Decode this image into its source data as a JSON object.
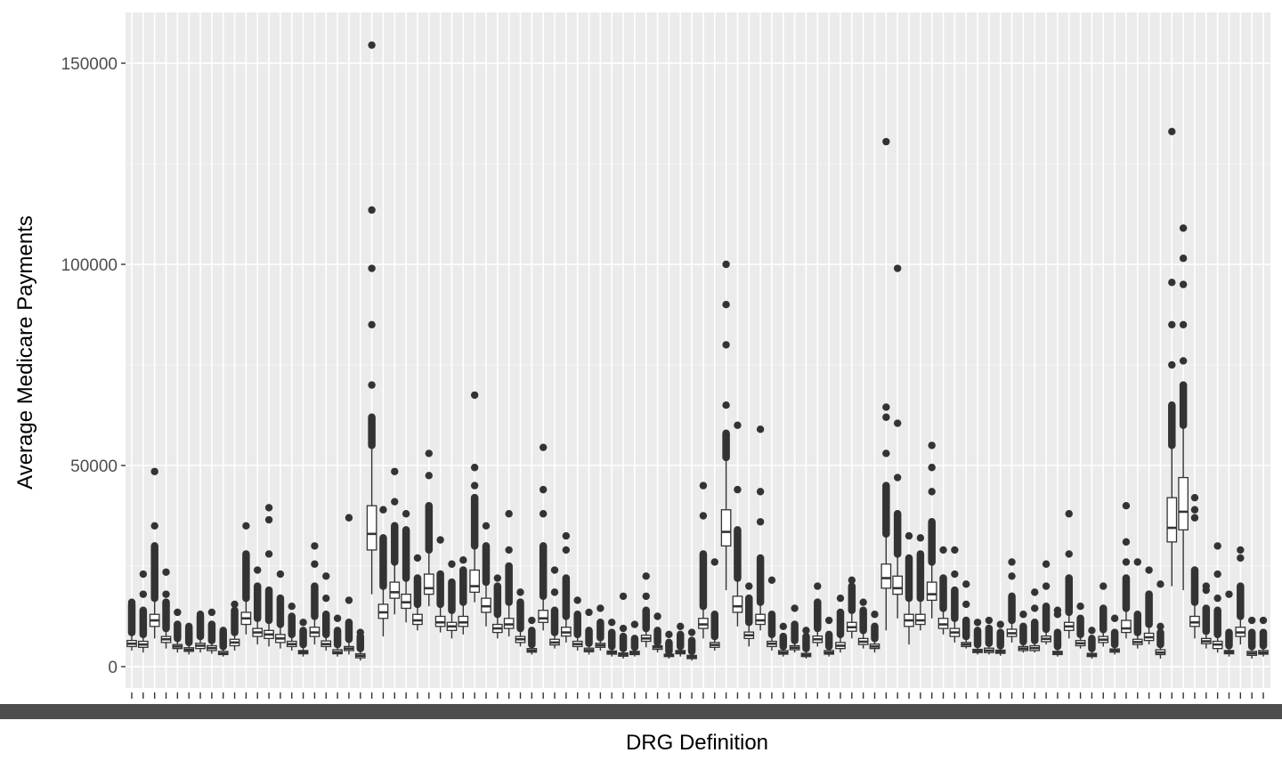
{
  "chart_data": {
    "type": "boxplot",
    "title": "",
    "xlabel": "DRG Definition",
    "ylabel": "Average Medicare Payments",
    "ylim": [
      0,
      157000
    ],
    "yticks": [
      0,
      50000,
      100000,
      150000
    ],
    "ytick_labels": [
      "0",
      "50000",
      "100000",
      "150000"
    ],
    "grid": true,
    "legend": "none",
    "x_tick_labels_legible": false,
    "category_count": 100,
    "colors": {
      "panel": "#ebebeb",
      "grid_major": "#ffffff",
      "box_outline": "#333333",
      "box_fill": "#ffffff",
      "outlier": "#333333",
      "tick_text": "#4d4d4d",
      "overplotted_labels": "#4d4d4d"
    },
    "boxes": [
      [
        4000,
        5000,
        5700,
        6500,
        8500,
        15500,
        [
          16000
        ]
      ],
      [
        3500,
        4800,
        5500,
        6300,
        8000,
        14000,
        [
          18000,
          23000
        ]
      ],
      [
        7000,
        10000,
        11500,
        13000,
        17000,
        30000,
        [
          35000,
          48500
        ]
      ],
      [
        4500,
        6000,
        6800,
        7500,
        9500,
        16000,
        [
          18000,
          23500
        ]
      ],
      [
        3500,
        4500,
        5000,
        5500,
        7000,
        10500,
        [
          13500
        ]
      ],
      [
        3000,
        3800,
        4200,
        4700,
        6000,
        9500,
        [
          10000
        ]
      ],
      [
        3500,
        4500,
        5200,
        5800,
        7500,
        12500,
        [
          13000
        ]
      ],
      [
        3200,
        4000,
        4600,
        5200,
        6500,
        10500,
        [
          13500
        ]
      ],
      [
        2500,
        3000,
        3300,
        3800,
        5000,
        8500,
        [
          9000
        ]
      ],
      [
        4000,
        5200,
        6000,
        6800,
        8500,
        14000,
        [
          15500
        ]
      ],
      [
        8000,
        10500,
        12000,
        13500,
        17000,
        28000,
        [
          35000
        ]
      ],
      [
        5500,
        7500,
        8500,
        9500,
        12000,
        20000,
        [
          24000
        ]
      ],
      [
        5000,
        7000,
        8000,
        9000,
        11500,
        19000,
        [
          28000,
          36500,
          39500
        ]
      ],
      [
        4500,
        6000,
        7000,
        8000,
        10500,
        17000,
        [
          23000
        ]
      ],
      [
        4000,
        5000,
        5600,
        6300,
        8000,
        12500,
        [
          15000
        ]
      ],
      [
        2500,
        3200,
        3600,
        4000,
        5500,
        9000,
        [
          11000
        ]
      ],
      [
        5500,
        7500,
        8500,
        9800,
        12500,
        20000,
        [
          25500,
          30000
        ]
      ],
      [
        4000,
        5000,
        5600,
        6400,
        8000,
        13000,
        [
          17000,
          22500
        ]
      ],
      [
        2500,
        3200,
        3600,
        4200,
        5500,
        9000,
        [
          12000
        ]
      ],
      [
        3000,
        4000,
        4500,
        5000,
        6800,
        11000,
        [
          16500,
          37000
        ]
      ],
      [
        1500,
        2200,
        2700,
        3200,
        4500,
        7500,
        [
          8500
        ]
      ],
      [
        18000,
        29000,
        33000,
        40000,
        55000,
        62000,
        [
          70000,
          85000,
          99000,
          113500,
          154500
        ]
      ],
      [
        7500,
        12000,
        13500,
        15500,
        20000,
        32000,
        [
          39000
        ]
      ],
      [
        13000,
        17000,
        18500,
        21000,
        26000,
        35000,
        [
          41000,
          48500
        ]
      ],
      [
        11000,
        14500,
        16000,
        18000,
        22000,
        34000,
        [
          38000
        ]
      ],
      [
        9000,
        10500,
        11500,
        13000,
        15500,
        22000,
        [
          27000
        ]
      ],
      [
        15000,
        18000,
        19500,
        23000,
        29000,
        40000,
        [
          47500,
          53000
        ]
      ],
      [
        8500,
        10000,
        11000,
        12500,
        15500,
        23000,
        [
          31500
        ]
      ],
      [
        7000,
        9000,
        10000,
        11000,
        14000,
        21000,
        [
          25500
        ]
      ],
      [
        8000,
        10000,
        11000,
        12500,
        16000,
        24000,
        [
          26500
        ]
      ],
      [
        16000,
        18500,
        20000,
        24000,
        30000,
        42000,
        [
          45000,
          49500,
          67500
        ]
      ],
      [
        10000,
        13500,
        15000,
        17000,
        21000,
        30000,
        [
          35000
        ]
      ],
      [
        7000,
        8500,
        9500,
        10500,
        13000,
        20000,
        [
          22000
        ]
      ],
      [
        7500,
        9500,
        10500,
        12000,
        16000,
        25000,
        [
          29000,
          38000
        ]
      ],
      [
        5000,
        6000,
        6800,
        7500,
        9500,
        16000,
        [
          18500
        ]
      ],
      [
        3000,
        3600,
        4000,
        4500,
        5500,
        9000,
        [
          11500
        ]
      ],
      [
        9000,
        11000,
        12000,
        14000,
        17500,
        30000,
        [
          38000,
          44000,
          54500
        ]
      ],
      [
        4500,
        5400,
        6000,
        6800,
        8500,
        14000,
        [
          18500,
          24000
        ]
      ],
      [
        6000,
        7600,
        8500,
        9800,
        12500,
        22000,
        [
          29000,
          32500
        ]
      ],
      [
        4000,
        5000,
        5600,
        6300,
        8000,
        13000,
        [
          16500
        ]
      ],
      [
        3000,
        3700,
        4100,
        4600,
        5800,
        9000,
        [
          13500
        ]
      ],
      [
        4000,
        4800,
        5300,
        5800,
        7200,
        11000,
        [
          14500
        ]
      ],
      [
        2500,
        3100,
        3500,
        3900,
        5000,
        8500,
        [
          11000
        ]
      ],
      [
        2000,
        2600,
        3000,
        3400,
        4500,
        7500,
        [
          9500,
          17500
        ]
      ],
      [
        2500,
        3000,
        3400,
        3800,
        4800,
        7000,
        [
          10500
        ]
      ],
      [
        4800,
        6300,
        7000,
        7800,
        9500,
        14000,
        [
          17500,
          22500
        ]
      ],
      [
        3500,
        4300,
        4800,
        5200,
        6000,
        9000,
        [
          12500
        ]
      ],
      [
        2000,
        2500,
        2800,
        3100,
        3800,
        6000,
        [
          8000
        ]
      ],
      [
        2500,
        3200,
        3600,
        4000,
        5000,
        8000,
        [
          10000
        ]
      ],
      [
        1500,
        2000,
        2400,
        2800,
        3800,
        6500,
        [
          8500
        ]
      ],
      [
        7000,
        9500,
        10500,
        12000,
        15000,
        28000,
        [
          37500,
          45000
        ]
      ],
      [
        4000,
        4800,
        5400,
        6000,
        7500,
        13000,
        [
          26000
        ]
      ],
      [
        19000,
        30000,
        33500,
        39000,
        52000,
        58000,
        [
          65000,
          80000,
          90000,
          100000
        ]
      ],
      [
        10000,
        13500,
        15000,
        17500,
        22000,
        34000,
        [
          44000,
          60000
        ]
      ],
      [
        5000,
        7000,
        7800,
        8600,
        11000,
        17000,
        [
          20000
        ]
      ],
      [
        9000,
        10500,
        11500,
        13000,
        16000,
        27000,
        [
          36000,
          43500,
          59000
        ]
      ],
      [
        4000,
        5000,
        5700,
        6300,
        8000,
        13000,
        [
          21500
        ]
      ],
      [
        2500,
        3100,
        3500,
        4000,
        5000,
        7500,
        [
          10000
        ]
      ],
      [
        3500,
        4200,
        4700,
        5200,
        6500,
        10500,
        [
          14500
        ]
      ],
      [
        2000,
        2500,
        2900,
        3300,
        4500,
        7500,
        [
          9000
        ]
      ],
      [
        5000,
        6000,
        6800,
        7600,
        9500,
        16000,
        [
          20000
        ]
      ],
      [
        2500,
        3100,
        3500,
        4000,
        5000,
        8000,
        [
          11500
        ]
      ],
      [
        3500,
        4500,
        5200,
        6000,
        8000,
        13500,
        [
          17000
        ]
      ],
      [
        7000,
        8800,
        9800,
        11000,
        14000,
        20000,
        [
          21500
        ]
      ],
      [
        4500,
        5500,
        6200,
        7000,
        9000,
        14000,
        [
          16000
        ]
      ],
      [
        3500,
        4500,
        5000,
        5600,
        7000,
        10000,
        [
          13000
        ]
      ],
      [
        9000,
        19500,
        22000,
        25500,
        33000,
        45000,
        [
          53000,
          62000,
          64500,
          130500
        ]
      ],
      [
        12000,
        18000,
        19500,
        22500,
        28000,
        38000,
        [
          47000,
          60500,
          99000
        ]
      ],
      [
        5500,
        10000,
        11500,
        13000,
        17000,
        27000,
        [
          32500
        ]
      ],
      [
        9000,
        10500,
        11500,
        13000,
        17000,
        28000,
        [
          32000
        ]
      ],
      [
        12000,
        16500,
        18000,
        21000,
        26000,
        36000,
        [
          43500,
          49500,
          55000
        ]
      ],
      [
        8000,
        9500,
        10500,
        12000,
        14500,
        22000,
        [
          29000
        ]
      ],
      [
        6000,
        7500,
        8500,
        9500,
        12000,
        19000,
        [
          23000,
          29000
        ]
      ],
      [
        4500,
        5000,
        5500,
        6000,
        7500,
        11500,
        [
          15500,
          20500
        ]
      ],
      [
        3000,
        3500,
        3900,
        4300,
        5500,
        9000,
        [
          11000
        ]
      ],
      [
        3000,
        3500,
        4000,
        4600,
        5800,
        9500,
        [
          11500
        ]
      ],
      [
        2700,
        3300,
        3700,
        4100,
        5200,
        8500,
        [
          10500
        ]
      ],
      [
        6000,
        7500,
        8300,
        9300,
        11500,
        17500,
        [
          22500,
          26000
        ]
      ],
      [
        3500,
        4000,
        4500,
        5000,
        6200,
        10000,
        [
          13000
        ]
      ],
      [
        3500,
        4000,
        4600,
        5200,
        6500,
        11000,
        [
          14500,
          18500
        ]
      ],
      [
        5500,
        6200,
        6900,
        7600,
        9300,
        15000,
        [
          20000,
          25500
        ]
      ],
      [
        2500,
        3000,
        3400,
        3800,
        5000,
        8500,
        [
          13000,
          14000
        ]
      ],
      [
        7000,
        9000,
        10000,
        11000,
        13500,
        22000,
        [
          28000,
          38000
        ]
      ],
      [
        4500,
        5200,
        5800,
        6500,
        8000,
        12000,
        [
          15000
        ]
      ],
      [
        2000,
        2500,
        2900,
        3300,
        4500,
        7000,
        [
          9000
        ]
      ],
      [
        5000,
        6000,
        6700,
        7500,
        9200,
        14500,
        [
          20000
        ]
      ],
      [
        3000,
        3600,
        4000,
        4400,
        5500,
        8500,
        [
          12000
        ]
      ],
      [
        7000,
        8500,
        9500,
        11500,
        14500,
        22000,
        [
          26000,
          31000,
          40000
        ]
      ],
      [
        4500,
        5500,
        6100,
        6800,
        8500,
        13000,
        [
          26000
        ]
      ],
      [
        5500,
        6500,
        7300,
        8300,
        10500,
        18000,
        [
          24000
        ]
      ],
      [
        2000,
        3000,
        3500,
        4200,
        5500,
        8500,
        [
          10000,
          20500
        ]
      ],
      [
        20000,
        31000,
        34500,
        42000,
        55000,
        65000,
        [
          75000,
          85000,
          95500,
          133000
        ]
      ],
      [
        19000,
        34000,
        38500,
        47000,
        60000,
        70000,
        [
          76000,
          85000,
          95000,
          101500,
          109000
        ]
      ],
      [
        7000,
        10000,
        11000,
        12500,
        16000,
        24000,
        [
          37000,
          39000,
          42000
        ]
      ],
      [
        4500,
        5700,
        6300,
        7000,
        8800,
        14500,
        [
          19000,
          20000
        ]
      ],
      [
        3500,
        4500,
        5500,
        6300,
        8000,
        14000,
        [
          17000,
          23000,
          30000
        ]
      ],
      [
        2500,
        3200,
        3600,
        4000,
        5200,
        8500,
        [
          18000
        ]
      ],
      [
        5500,
        7500,
        8500,
        9800,
        12500,
        20000,
        [
          27000,
          29000
        ]
      ],
      [
        2000,
        2800,
        3300,
        3800,
        5000,
        8500,
        [
          11500
        ]
      ],
      [
        2500,
        3100,
        3500,
        4000,
        5200,
        8500,
        [
          11500
        ]
      ]
    ]
  }
}
